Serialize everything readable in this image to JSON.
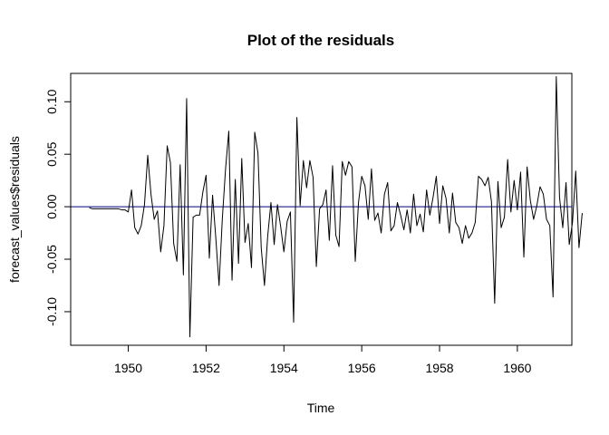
{
  "chart_data": {
    "type": "line",
    "title": "Plot of the residuals",
    "xlabel": "Time",
    "ylabel": "forecast_values$residuals",
    "xlim": [
      1948.52,
      1961.4
    ],
    "ylim": [
      -0.132,
      0.127
    ],
    "xticks": [
      1950,
      1952,
      1954,
      1956,
      1958,
      1960
    ],
    "yticks": [
      -0.1,
      -0.05,
      0.0,
      0.05,
      0.1
    ],
    "ytick_labels": [
      "-0.10",
      "-0.05",
      "0.00",
      "0.05",
      "0.10"
    ],
    "xtick_labels": [
      "1950",
      "1952",
      "1954",
      "1956",
      "1958",
      "1960"
    ],
    "start": 1949.0,
    "frequency": 12,
    "series": [
      {
        "values": [
          -0.001,
          -0.002,
          -0.002,
          -0.002,
          -0.002,
          -0.002,
          -0.002,
          -0.002,
          -0.002,
          -0.002,
          -0.003,
          -0.003,
          -0.005,
          0.016,
          -0.02,
          -0.026,
          -0.018,
          0.002,
          0.049,
          0.012,
          -0.012,
          -0.004,
          -0.043,
          -0.018,
          0.058,
          0.042,
          -0.035,
          -0.052,
          0.04,
          -0.065,
          0.103,
          -0.124,
          -0.01,
          -0.008,
          -0.008,
          0.014,
          0.03,
          -0.049,
          0.011,
          -0.03,
          -0.075,
          -0.012,
          0.036,
          0.072,
          -0.07,
          0.026,
          -0.054,
          0.046,
          -0.034,
          -0.016,
          -0.058,
          0.071,
          0.051,
          -0.039,
          -0.075,
          -0.028,
          0.004,
          -0.036,
          0.002,
          -0.019,
          -0.043,
          -0.014,
          -0.005,
          -0.11,
          0.085,
          0.001,
          0.044,
          0.018,
          0.044,
          0.028,
          -0.057,
          -0.002,
          0.002,
          0.016,
          -0.032,
          0.039,
          -0.027,
          -0.038,
          0.043,
          0.03,
          0.043,
          0.038,
          -0.052,
          0.004,
          0.029,
          0.02,
          -0.012,
          0.036,
          -0.013,
          -0.006,
          -0.025,
          0.012,
          0.023,
          -0.023,
          -0.018,
          0.004,
          -0.008,
          -0.022,
          -0.003,
          -0.025,
          0.012,
          -0.018,
          -0.007,
          -0.024,
          0.016,
          -0.008,
          0.009,
          0.029,
          -0.016,
          0.02,
          0.008,
          -0.025,
          0.013,
          -0.015,
          -0.02,
          -0.035,
          -0.018,
          -0.03,
          -0.025,
          -0.015,
          0.029,
          0.026,
          0.02,
          0.028,
          0.005,
          -0.092,
          0.024,
          -0.02,
          -0.01,
          0.045,
          -0.005,
          0.025,
          -0.003,
          0.033,
          -0.048,
          0.038,
          0.006,
          -0.012,
          0.001,
          0.019,
          0.012,
          -0.012,
          -0.018,
          -0.086,
          0.124,
          0.009,
          -0.02,
          0.023,
          -0.036,
          -0.015,
          0.034,
          -0.039,
          -0.006
        ]
      }
    ],
    "hline": 0,
    "colors": {
      "series": "#000000",
      "hline": "#000080",
      "frame": "#000000"
    }
  }
}
